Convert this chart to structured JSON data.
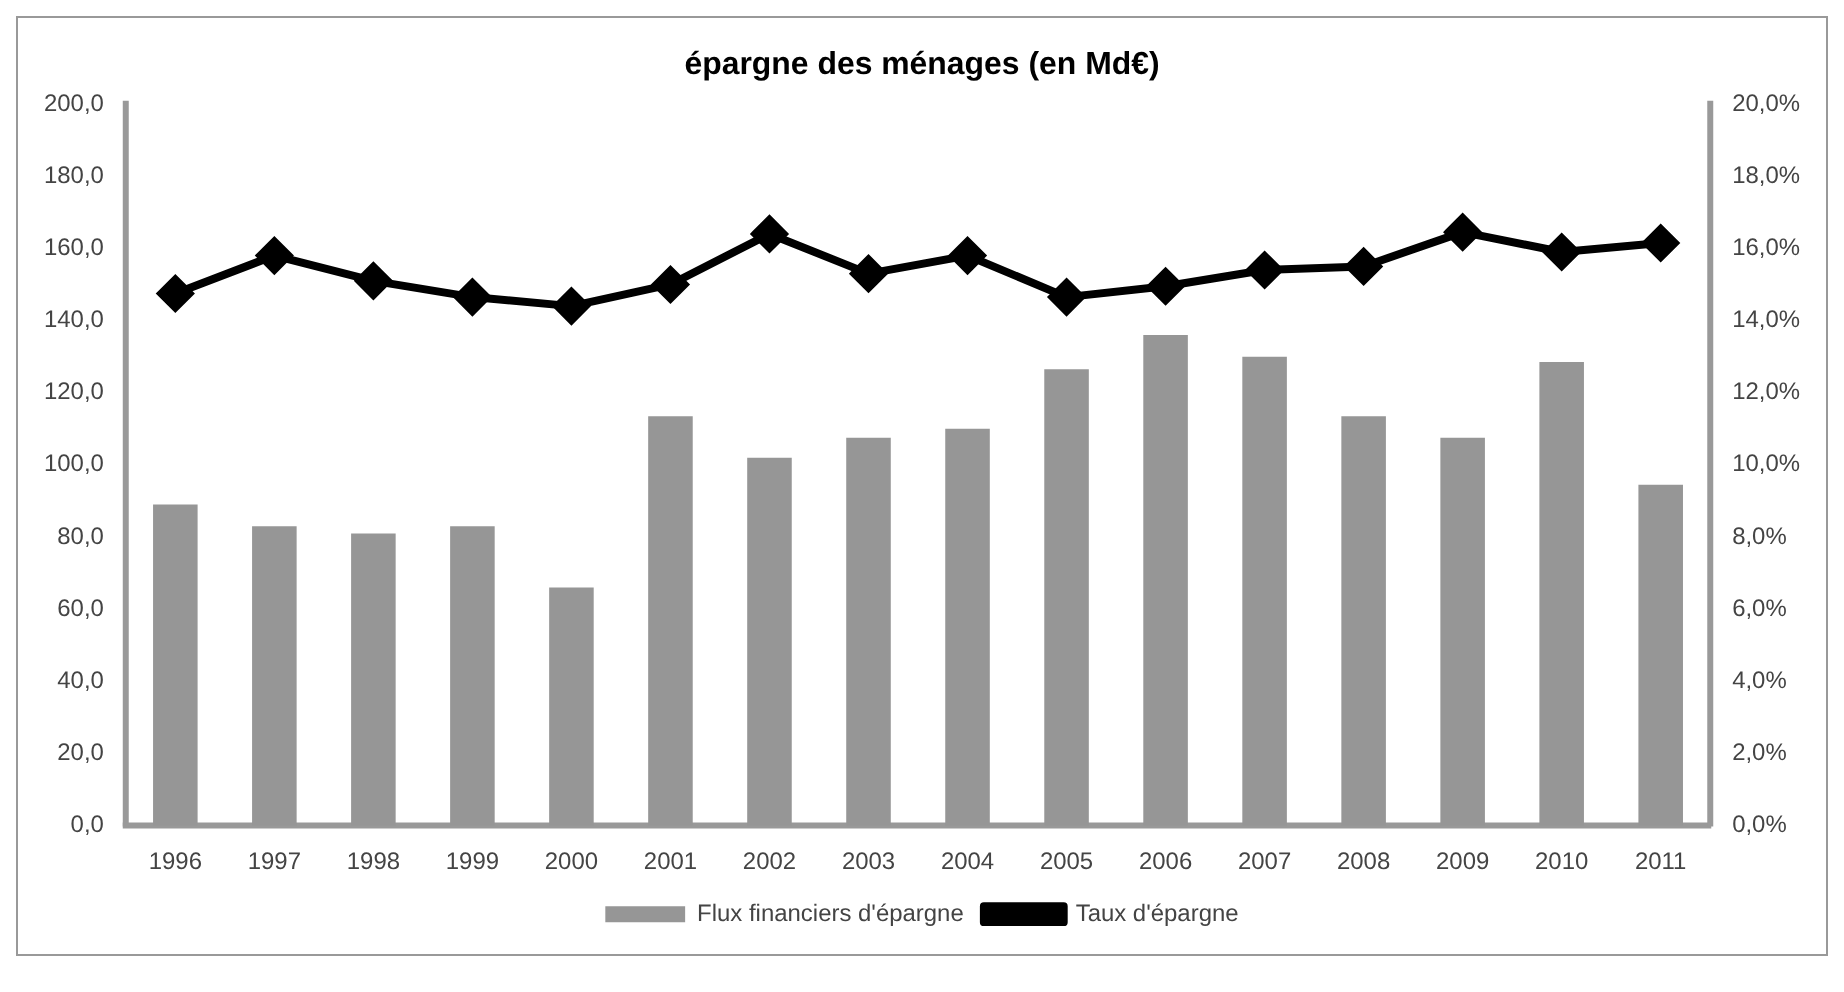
{
  "chart_data": {
    "type": "bar",
    "title": "épargne des ménages (en Md€)",
    "categories": [
      "1996",
      "1997",
      "1998",
      "1999",
      "2000",
      "2001",
      "2002",
      "2003",
      "2004",
      "2005",
      "2006",
      "2007",
      "2008",
      "2009",
      "2010",
      "2011"
    ],
    "series": [
      {
        "name": "Flux financiers d'épargne",
        "color": "#969696",
        "values": [
          89,
          83,
          81,
          83,
          66,
          113.5,
          102,
          107.5,
          110,
          126.5,
          136,
          130,
          113.5,
          107.5,
          128.5,
          94.5
        ]
      },
      {
        "name": "Taux d'épargne",
        "type": "line",
        "axis": "y2",
        "color": "#000000",
        "values": [
          14.75,
          15.8,
          15.1,
          14.65,
          14.4,
          15.0,
          16.4,
          15.3,
          15.8,
          14.65,
          14.95,
          15.4,
          15.5,
          16.45,
          15.9,
          16.15
        ]
      }
    ],
    "ylim": [
      0,
      200
    ],
    "yticks": [
      {
        "value": 0,
        "label": "0,0"
      },
      {
        "value": 20,
        "label": "20,0"
      },
      {
        "value": 40,
        "label": "40,0"
      },
      {
        "value": 60,
        "label": "60,0"
      },
      {
        "value": 80,
        "label": "80,0"
      },
      {
        "value": 100,
        "label": "100,0"
      },
      {
        "value": 120,
        "label": "120,0"
      },
      {
        "value": 140,
        "label": "140,0"
      },
      {
        "value": 160,
        "label": "160,0"
      },
      {
        "value": 180,
        "label": "180,0"
      },
      {
        "value": 200,
        "label": "200,0"
      }
    ],
    "y2lim": [
      0,
      20
    ],
    "y2ticks": [
      {
        "value": 0,
        "label": "0,0%"
      },
      {
        "value": 2,
        "label": "2,0%"
      },
      {
        "value": 4,
        "label": "4,0%"
      },
      {
        "value": 6,
        "label": "6,0%"
      },
      {
        "value": 8,
        "label": "8,0%"
      },
      {
        "value": 10,
        "label": "10,0%"
      },
      {
        "value": 12,
        "label": "12,0%"
      },
      {
        "value": 14,
        "label": "14,0%"
      },
      {
        "value": 16,
        "label": "16,0%"
      },
      {
        "value": 18,
        "label": "18,0%"
      },
      {
        "value": 20,
        "label": "20,0%"
      }
    ],
    "grid": false,
    "legend": "bottom",
    "marker": "diamond",
    "line_style": "solid"
  }
}
